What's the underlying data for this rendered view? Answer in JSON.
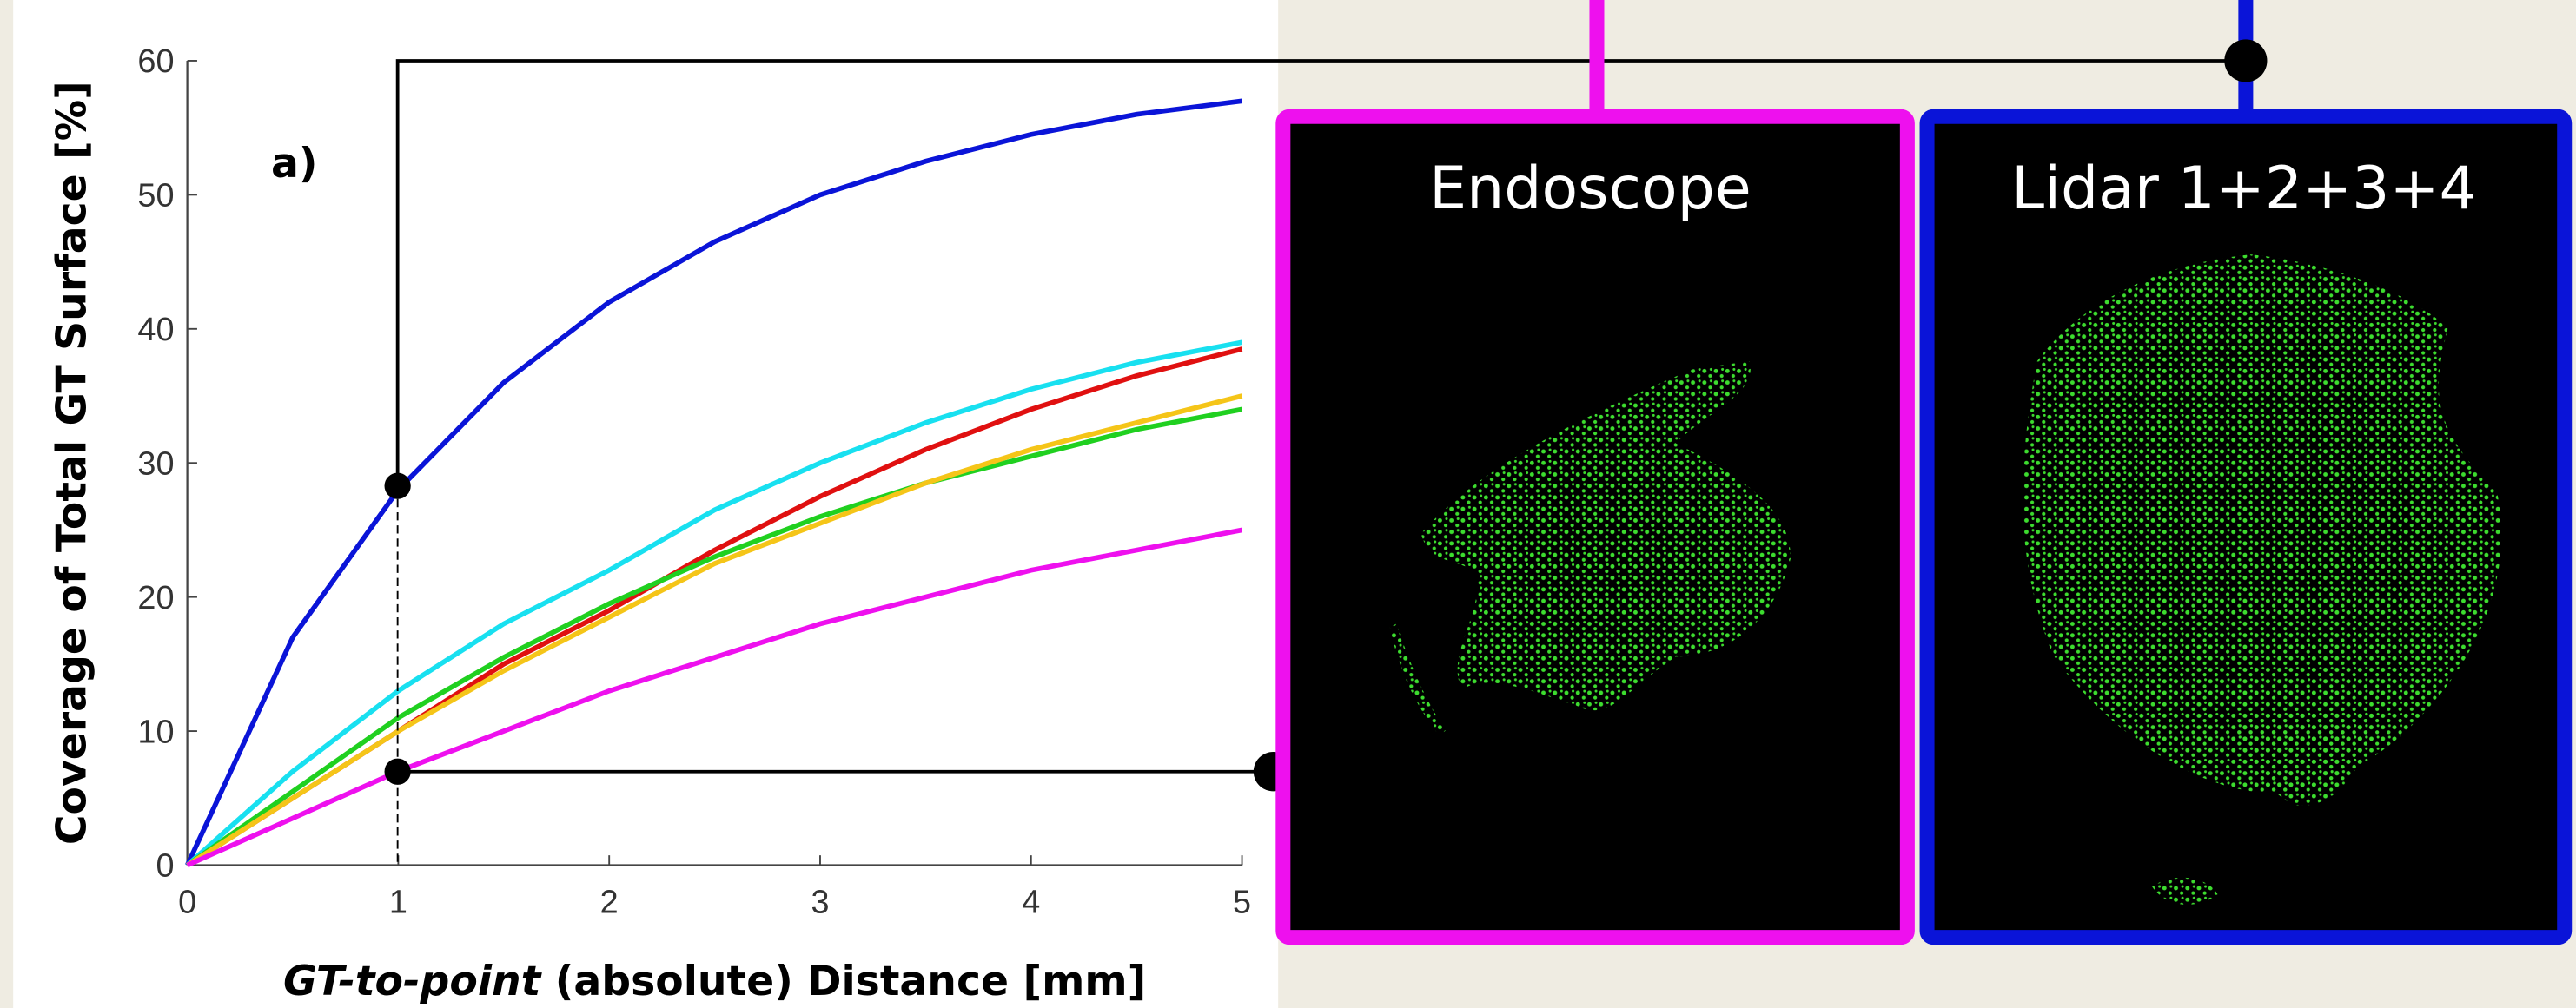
{
  "chart_data": {
    "type": "line",
    "panel_label": "a)",
    "ylabel": "Coverage of Total GT Surface [%]",
    "xlabel": {
      "italic": "GT-to-point",
      "rest": "(absolute) Distance [mm]"
    },
    "x": [
      0,
      0.5,
      1,
      1.5,
      2,
      2.5,
      3,
      3.5,
      4,
      4.5,
      5
    ],
    "xlim": [
      0,
      5
    ],
    "xticks": [
      0,
      1,
      2,
      3,
      4,
      5
    ],
    "ylim": [
      0,
      60
    ],
    "yticks": [
      0,
      10,
      20,
      30,
      40,
      50,
      60
    ],
    "series": [
      {
        "color": "#0a14d8",
        "values": [
          0,
          17,
          28,
          36,
          42,
          46.5,
          50,
          52.5,
          54.5,
          56,
          57
        ]
      },
      {
        "color": "#18e0f0",
        "values": [
          0,
          7,
          13,
          18,
          22,
          26.5,
          30,
          33,
          35.5,
          37.5,
          39
        ]
      },
      {
        "color": "#e01010",
        "values": [
          0,
          5,
          10,
          15,
          19,
          23.5,
          27.5,
          31,
          34,
          36.5,
          38.5
        ]
      },
      {
        "color": "#20d020",
        "values": [
          0,
          5.5,
          11,
          15.5,
          19.5,
          23,
          26,
          28.5,
          30.5,
          32.5,
          34
        ]
      },
      {
        "color": "#f5c518",
        "values": [
          0,
          5,
          10,
          14.5,
          18.5,
          22.5,
          25.5,
          28.5,
          31,
          33,
          35
        ]
      },
      {
        "color": "#ee10ee",
        "values": [
          0,
          3.5,
          7,
          10,
          13,
          15.5,
          18,
          20,
          22,
          23.5,
          25
        ]
      }
    ],
    "insets": [
      "Endoscope",
      "Lidar 1+2+3+4"
    ]
  }
}
